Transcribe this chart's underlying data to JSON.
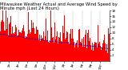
{
  "title": "Milwaukee Weather Actual and Average Wind Speed by Minute mph (Last 24 Hours)",
  "n_points": 1440,
  "ylim": [
    0,
    18
  ],
  "yticks": [
    2,
    4,
    6,
    8,
    10,
    12,
    14,
    16,
    18
  ],
  "bar_color": "#ff0000",
  "line_color": "#0000cd",
  "background_color": "#ffffff",
  "grid_color": "#aaaaaa",
  "title_fontsize": 3.8,
  "tick_fontsize": 3.0,
  "seed": 42,
  "figwidth": 1.6,
  "figheight": 0.87,
  "dpi": 100
}
